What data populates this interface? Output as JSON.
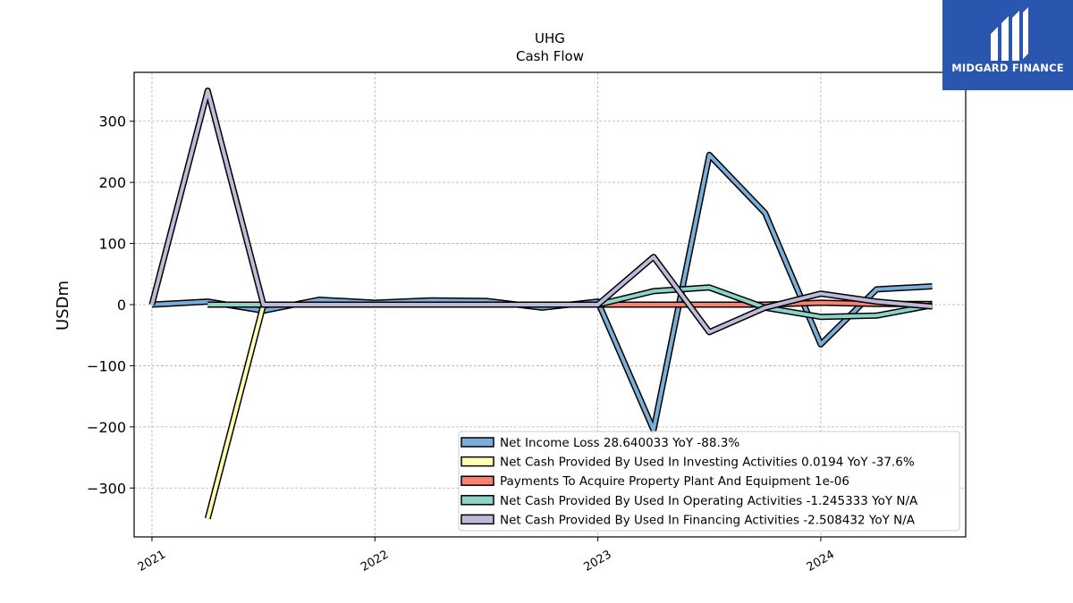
{
  "brand": {
    "name": "MIDGARD FINANCE",
    "color": "#2a56b0"
  },
  "chart_data": {
    "type": "line",
    "title": "UHG",
    "subtitle": "Cash Flow",
    "xlabel": "",
    "ylabel": "USDm",
    "xlim": [
      2020.92,
      2024.65
    ],
    "ylim": [
      -380,
      380
    ],
    "x_ticks": [
      2021,
      2022,
      2023,
      2024
    ],
    "x_tick_labels": [
      "2021",
      "2022",
      "2023",
      "2024"
    ],
    "y_ticks": [
      300,
      200,
      100,
      0,
      -100,
      -200,
      -300
    ],
    "y_tick_labels": [
      "300",
      "200",
      "100",
      "0",
      "−100",
      "−200",
      "−300"
    ],
    "grid": true,
    "legend_position": "lower right",
    "series": [
      {
        "name": "Net Income Loss  28.640033 YoY -88.3%",
        "color": "#7aaed6",
        "x": [
          2021.0,
          2021.25,
          2021.5,
          2021.75,
          2022.0,
          2022.25,
          2022.5,
          2022.75,
          2023.0,
          2023.25,
          2023.5,
          2023.75,
          2024.0,
          2024.25,
          2024.5
        ],
        "y": [
          0,
          5,
          -10,
          8,
          3,
          7,
          6,
          -5,
          5,
          -205,
          245,
          150,
          -65,
          25,
          30
        ]
      },
      {
        "name": "Net Cash Provided By Used In Investing Activities  0.0194 YoY -37.6%",
        "color": "#ffffb3",
        "x": [
          2021.25,
          2021.5
        ],
        "y": [
          -350,
          0
        ]
      },
      {
        "name": "Payments To Acquire Property Plant And Equipment  1e-06",
        "color": "#fb8072",
        "x": [
          2021.25,
          2021.5,
          2021.75,
          2022.0,
          2022.25,
          2022.5,
          2022.75,
          2023.0,
          2023.25,
          2023.5,
          2023.75,
          2024.0,
          2024.25,
          2024.5
        ],
        "y": [
          0,
          0,
          0,
          0,
          0,
          0,
          0,
          0,
          0,
          0,
          0,
          3,
          1,
          1
        ]
      },
      {
        "name": "Net Cash Provided By Used In Operating Activities  -1.245333 YoY N/A",
        "color": "#8dd3c7",
        "x": [
          2021.25,
          2021.5,
          2021.75,
          2022.0,
          2022.25,
          2022.5,
          2022.75,
          2023.0,
          2023.25,
          2023.5,
          2023.75,
          2024.0,
          2024.25,
          2024.5
        ],
        "y": [
          0,
          0,
          0,
          0,
          0,
          0,
          0,
          0,
          22,
          28,
          -5,
          -20,
          -18,
          -1
        ]
      },
      {
        "name": "Net Cash Provided By Used In Financing Activities  -2.508432 YoY N/A",
        "color": "#bebada",
        "x": [
          2021.0,
          2021.25,
          2021.5,
          2021.75,
          2022.0,
          2022.25,
          2022.5,
          2022.75,
          2023.0,
          2023.25,
          2023.5,
          2023.75,
          2024.0,
          2024.25,
          2024.5
        ],
        "y": [
          0,
          350,
          0,
          0,
          0,
          0,
          0,
          0,
          0,
          78,
          -45,
          -5,
          18,
          5,
          -3
        ]
      }
    ]
  }
}
